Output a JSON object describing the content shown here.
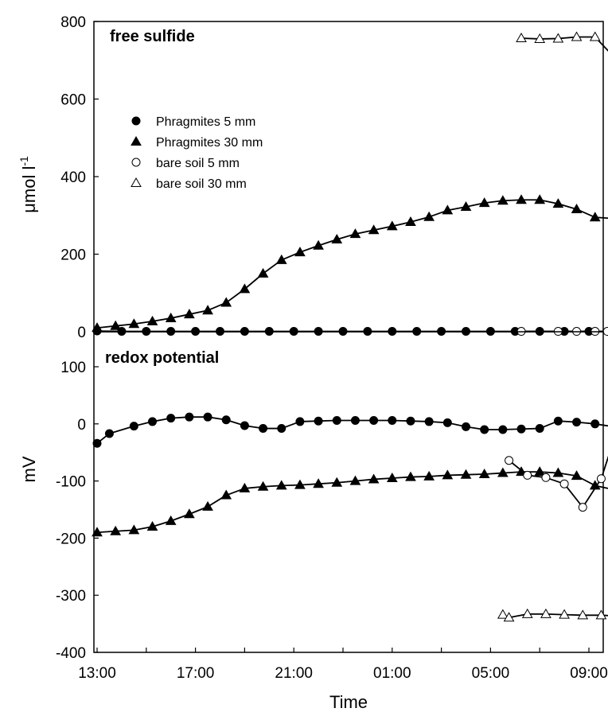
{
  "chart_data": [
    {
      "type": "line",
      "title": "free sulfide",
      "ylabel": "μmol l",
      "ylabel_sup": "-1",
      "xlabel": "",
      "ylim": [
        0,
        800
      ],
      "yticks": [
        "0",
        "200",
        "400",
        "600",
        "800"
      ],
      "x_unit": "hours since 13:00",
      "legend": {
        "position": "top-left",
        "entries": [
          {
            "name": "Phragmites 5 mm",
            "marker": "filled-circle"
          },
          {
            "name": "Phragmites 30 mm",
            "marker": "filled-triangle"
          },
          {
            "name": "bare soil 5 mm",
            "marker": "open-circle"
          },
          {
            "name": "bare soil 30 mm",
            "marker": "open-triangle"
          }
        ]
      },
      "series": [
        {
          "name": "Phragmites 5 mm",
          "marker": "filled-circle",
          "points": [
            [
              0,
              2
            ],
            [
              1,
              1
            ],
            [
              2,
              1
            ],
            [
              3,
              1
            ],
            [
              4,
              1
            ],
            [
              5,
              1
            ],
            [
              6,
              1
            ],
            [
              7,
              1
            ],
            [
              8,
              1
            ],
            [
              9,
              1
            ],
            [
              10,
              1
            ],
            [
              11,
              1
            ],
            [
              12,
              1
            ],
            [
              13,
              1
            ],
            [
              14,
              1
            ],
            [
              15,
              1
            ],
            [
              16,
              1
            ],
            [
              17,
              1
            ],
            [
              18,
              1
            ],
            [
              19,
              1
            ],
            [
              20,
              1
            ],
            [
              21,
              1
            ]
          ]
        },
        {
          "name": "Phragmites 30 mm",
          "marker": "filled-triangle",
          "points": [
            [
              0,
              10
            ],
            [
              0.75,
              15
            ],
            [
              1.5,
              20
            ],
            [
              2.25,
              27
            ],
            [
              3,
              35
            ],
            [
              3.75,
              45
            ],
            [
              4.5,
              55
            ],
            [
              5.25,
              75
            ],
            [
              6,
              110
            ],
            [
              6.75,
              150
            ],
            [
              7.5,
              185
            ],
            [
              8.25,
              205
            ],
            [
              9,
              222
            ],
            [
              9.75,
              238
            ],
            [
              10.5,
              252
            ],
            [
              11.25,
              262
            ],
            [
              12,
              272
            ],
            [
              12.75,
              283
            ],
            [
              13.5,
              296
            ],
            [
              14.25,
              313
            ],
            [
              15,
              322
            ],
            [
              15.75,
              332
            ],
            [
              16.5,
              338
            ],
            [
              17.25,
              340
            ],
            [
              18,
              340
            ],
            [
              18.75,
              330
            ],
            [
              19.5,
              316
            ],
            [
              20.25,
              295
            ],
            [
              21,
              292
            ],
            [
              21.5,
              292
            ]
          ]
        },
        {
          "name": "bare soil 5 mm",
          "marker": "open-circle",
          "points": [
            [
              17.25,
              1
            ],
            [
              18.75,
              1
            ],
            [
              19.5,
              1
            ],
            [
              20.25,
              1
            ],
            [
              20.75,
              1
            ]
          ]
        },
        {
          "name": "bare soil 30 mm",
          "marker": "open-triangle",
          "points": [
            [
              17.25,
              757
            ],
            [
              18,
              755
            ],
            [
              18.75,
              756
            ],
            [
              19.5,
              760
            ],
            [
              20.25,
              760
            ],
            [
              21,
              710
            ],
            [
              21.5,
              695
            ]
          ]
        }
      ]
    },
    {
      "type": "line",
      "title": "redox potential",
      "ylabel": "mV",
      "xlabel": "Time",
      "ylim": [
        -400,
        100
      ],
      "yticks": [
        "-400",
        "-300",
        "-200",
        "-100",
        "0",
        "100"
      ],
      "xticks": [
        "13:00",
        "17:00",
        "21:00",
        "01:00",
        "05:00",
        "09:00"
      ],
      "x_unit": "hours since 13:00",
      "series": [
        {
          "name": "Phragmites 5 mm",
          "marker": "filled-circle",
          "points": [
            [
              0,
              -34
            ],
            [
              0.5,
              -17
            ],
            [
              1.5,
              -4
            ],
            [
              2.25,
              4
            ],
            [
              3,
              10
            ],
            [
              3.75,
              12
            ],
            [
              4.5,
              12
            ],
            [
              5.25,
              7
            ],
            [
              6,
              -3
            ],
            [
              6.75,
              -8
            ],
            [
              7.5,
              -8
            ],
            [
              8.25,
              4
            ],
            [
              9,
              5
            ],
            [
              9.75,
              6
            ],
            [
              10.5,
              6
            ],
            [
              11.25,
              6
            ],
            [
              12,
              6
            ],
            [
              12.75,
              5
            ],
            [
              13.5,
              4
            ],
            [
              14.25,
              2
            ],
            [
              15,
              -5
            ],
            [
              15.75,
              -10
            ],
            [
              16.5,
              -10
            ],
            [
              17.25,
              -9
            ],
            [
              18,
              -8
            ],
            [
              18.75,
              5
            ],
            [
              19.5,
              3
            ],
            [
              20.25,
              0
            ],
            [
              21,
              -5
            ]
          ]
        },
        {
          "name": "Phragmites 30 mm",
          "marker": "filled-triangle",
          "points": [
            [
              0,
              -190
            ],
            [
              0.75,
              -188
            ],
            [
              1.5,
              -186
            ],
            [
              2.25,
              -180
            ],
            [
              3,
              -170
            ],
            [
              3.75,
              -158
            ],
            [
              4.5,
              -145
            ],
            [
              5.25,
              -125
            ],
            [
              6,
              -113
            ],
            [
              6.75,
              -110
            ],
            [
              7.5,
              -108
            ],
            [
              8.25,
              -107
            ],
            [
              9,
              -105
            ],
            [
              9.75,
              -103
            ],
            [
              10.5,
              -100
            ],
            [
              11.25,
              -97
            ],
            [
              12,
              -95
            ],
            [
              12.75,
              -93
            ],
            [
              13.5,
              -92
            ],
            [
              14.25,
              -90
            ],
            [
              15,
              -89
            ],
            [
              15.75,
              -88
            ],
            [
              16.5,
              -86
            ],
            [
              17.25,
              -84
            ],
            [
              18,
              -84
            ],
            [
              18.75,
              -86
            ],
            [
              19.5,
              -91
            ],
            [
              20.25,
              -108
            ],
            [
              21,
              -115
            ]
          ]
        },
        {
          "name": "bare soil 5 mm",
          "marker": "open-circle",
          "points": [
            [
              16.75,
              -64
            ],
            [
              17.5,
              -90
            ],
            [
              18.25,
              -94
            ],
            [
              19,
              -105
            ],
            [
              19.75,
              -146
            ],
            [
              20.5,
              -96
            ],
            [
              21,
              -30
            ]
          ]
        },
        {
          "name": "bare soil 30 mm",
          "marker": "open-triangle",
          "points": [
            [
              16.5,
              -334
            ],
            [
              16.75,
              -339
            ],
            [
              17.5,
              -333
            ],
            [
              18.25,
              -333
            ],
            [
              19,
              -334
            ],
            [
              19.75,
              -335
            ],
            [
              20.5,
              -335
            ],
            [
              21,
              -336
            ]
          ]
        }
      ]
    }
  ]
}
